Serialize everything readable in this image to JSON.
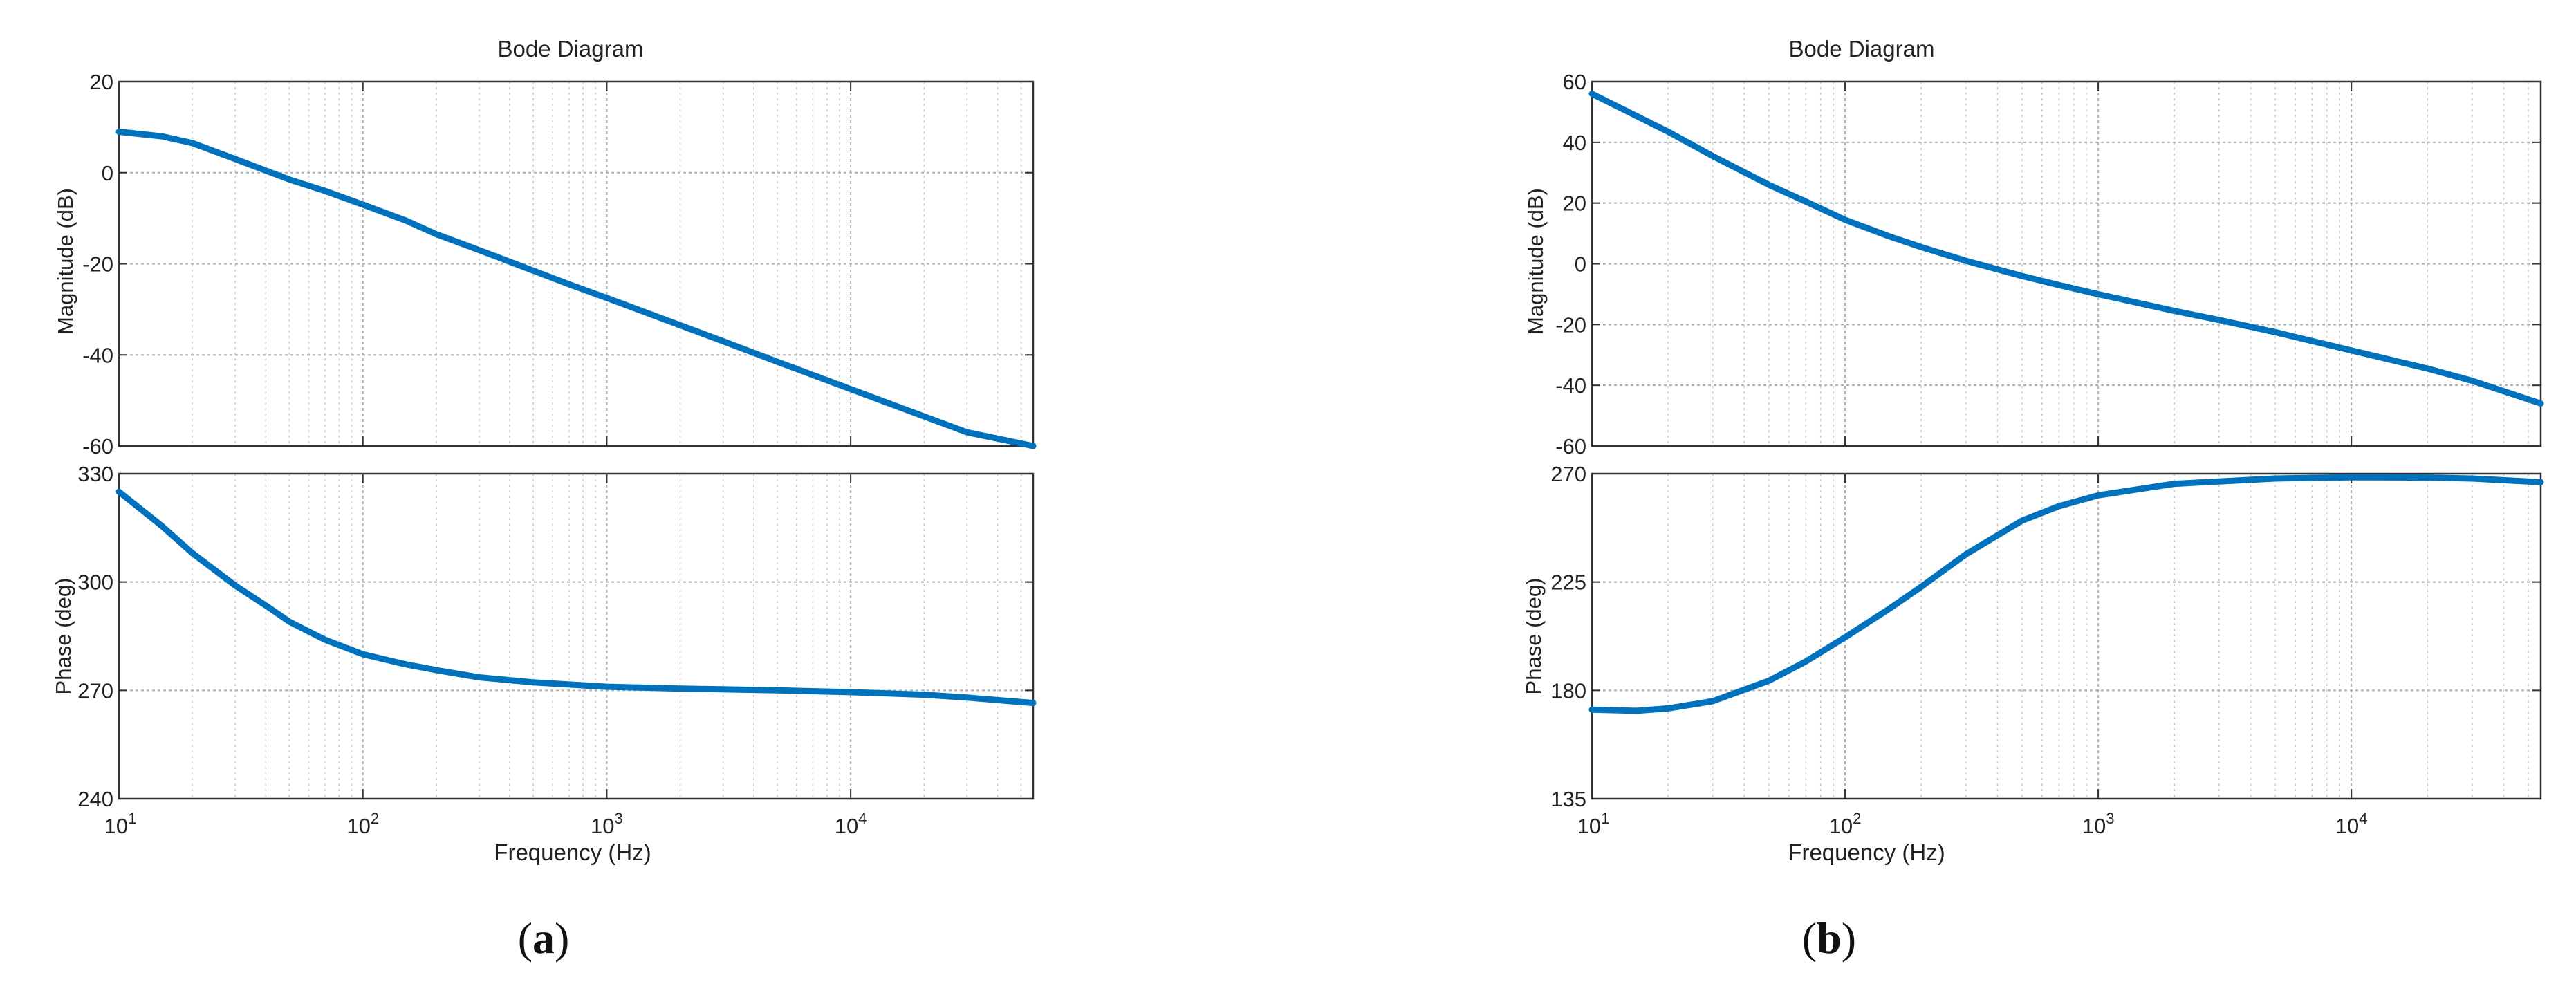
{
  "chart_data": [
    {
      "type": "line",
      "caption": "a",
      "title": "Bode Diagram",
      "xlabel": "Frequency  (Hz)",
      "xscale": "log",
      "xlim": [
        10,
        56000
      ],
      "xtick_labels": [
        {
          "base": "10",
          "exp": "1"
        },
        {
          "base": "10",
          "exp": "2"
        },
        {
          "base": "10",
          "exp": "3"
        },
        {
          "base": "10",
          "exp": "4"
        }
      ],
      "xtick_values": [
        10,
        100,
        1000,
        10000
      ],
      "grid": true,
      "color": "#0072BD",
      "magnitude": {
        "ylabel": "Magnitude (dB)",
        "ylim": [
          -60,
          20
        ],
        "yticks": [
          20,
          0,
          -20,
          -40,
          -60
        ],
        "x": [
          10,
          15,
          20,
          30,
          50,
          70,
          100,
          150,
          200,
          300,
          500,
          700,
          1000,
          2000,
          3000,
          5000,
          10000,
          20000,
          30000,
          56000
        ],
        "y": [
          9,
          8,
          6.5,
          3,
          -1.5,
          -4,
          -7,
          -10.5,
          -13.5,
          -17,
          -21.5,
          -24.5,
          -27.5,
          -33.5,
          -37,
          -41.5,
          -47.5,
          -53.5,
          -57,
          -60
        ]
      },
      "phase": {
        "ylabel": "Phase (deg)",
        "ylim": [
          240,
          330
        ],
        "yticks": [
          330,
          300,
          270,
          240
        ],
        "x": [
          10,
          15,
          20,
          30,
          40,
          50,
          70,
          100,
          150,
          200,
          300,
          500,
          1000,
          2000,
          5000,
          10000,
          20000,
          30000,
          56000
        ],
        "y": [
          325,
          315.5,
          308,
          299,
          293.5,
          289,
          284,
          280,
          277.2,
          275.6,
          273.6,
          272.2,
          271,
          270.5,
          270,
          269.5,
          268.8,
          268,
          266.5
        ]
      }
    },
    {
      "type": "line",
      "caption": "b",
      "title": "Bode Diagram",
      "xlabel": "Frequency  (Hz)",
      "xscale": "log",
      "xlim": [
        10,
        56000
      ],
      "xtick_labels": [
        {
          "base": "10",
          "exp": "1"
        },
        {
          "base": "10",
          "exp": "2"
        },
        {
          "base": "10",
          "exp": "3"
        },
        {
          "base": "10",
          "exp": "4"
        }
      ],
      "xtick_values": [
        10,
        100,
        1000,
        10000
      ],
      "grid": true,
      "color": "#0072BD",
      "magnitude": {
        "ylabel": "Magnitude (dB)",
        "ylim": [
          -60,
          60
        ],
        "yticks": [
          60,
          40,
          20,
          0,
          -20,
          -40,
          -60
        ],
        "x": [
          10,
          20,
          30,
          50,
          70,
          100,
          150,
          200,
          300,
          500,
          700,
          1000,
          2000,
          3000,
          5000,
          10000,
          20000,
          30000,
          56000
        ],
        "y": [
          56,
          43.5,
          35.5,
          26,
          20.5,
          14.5,
          9,
          5.5,
          1,
          -4,
          -7,
          -10,
          -15.5,
          -18.5,
          -22.5,
          -28.5,
          -34.5,
          -38.5,
          -46
        ]
      },
      "phase": {
        "ylabel": "Phase (deg)",
        "ylim": [
          135,
          270
        ],
        "yticks": [
          270,
          225,
          180,
          135
        ],
        "x": [
          10,
          15,
          20,
          30,
          50,
          70,
          100,
          150,
          200,
          300,
          500,
          700,
          1000,
          2000,
          5000,
          10000,
          20000,
          30000,
          56000
        ],
        "y": [
          172,
          171.5,
          172.5,
          175.5,
          184,
          192,
          202,
          214,
          223,
          236.5,
          250.5,
          256.5,
          261,
          265.8,
          268,
          268.5,
          268.4,
          268,
          266.5
        ]
      }
    }
  ]
}
